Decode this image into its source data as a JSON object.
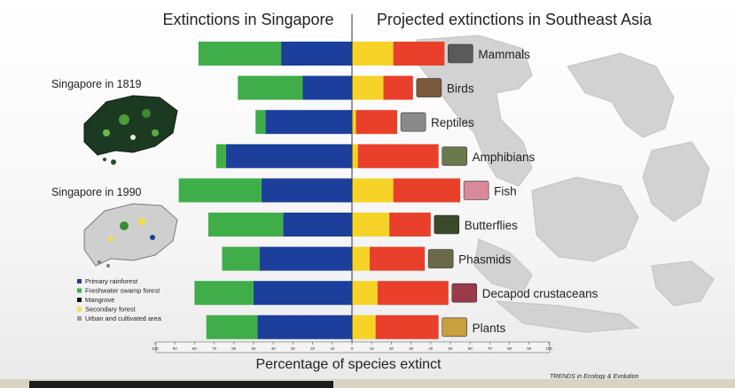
{
  "chart_data": {
    "type": "bar",
    "orientation": "horizontal-diverging",
    "title_left": "Extinctions in Singapore",
    "title_right": "Projected extinctions in Southeast Asia",
    "xlabel": "Percentage of species extinct",
    "credit": "TRENDS in Ecology & Evolution",
    "xlim": [
      -100,
      100
    ],
    "ticks": [
      "100",
      "90",
      "80",
      "70",
      "60",
      "50",
      "40",
      "30",
      "20",
      "10",
      "0",
      "10",
      "20",
      "30",
      "40",
      "50",
      "60",
      "70",
      "80",
      "90",
      "100"
    ],
    "categories": [
      "Mammals",
      "Birds",
      "Reptiles",
      "Amphibians",
      "Fish",
      "Butterflies",
      "Phasmids",
      "Decapod crustaceans",
      "Plants"
    ],
    "singapore_series": [
      {
        "name": "Primary rainforest",
        "color": "#1b3f9b",
        "values": [
          36,
          25,
          44,
          64,
          46,
          35,
          47,
          50,
          48
        ]
      },
      {
        "name": "Freshwater swamp forest",
        "color": "#3fae49",
        "values": [
          42,
          33,
          5,
          5,
          42,
          38,
          19,
          30,
          26
        ]
      },
      {
        "name": "Mangrove",
        "color": "#111111",
        "values": [
          0,
          0,
          0,
          0,
          0,
          0,
          0,
          0,
          0
        ]
      },
      {
        "name": "Secondary forest",
        "color": "#f2e040",
        "values": [
          0,
          0,
          0,
          0,
          0,
          0,
          0,
          0,
          0
        ]
      },
      {
        "name": "Urban and cultivated area",
        "color": "#9c9c9c",
        "values": [
          0,
          0,
          0,
          0,
          0,
          0,
          0,
          0,
          0
        ]
      }
    ],
    "southeast_asia_series": [
      {
        "color": "#f5d327",
        "values": [
          21,
          16,
          2,
          3,
          21,
          19,
          9,
          13,
          12
        ]
      },
      {
        "color": "#e8402a",
        "values": [
          26,
          15,
          21,
          41,
          34,
          21,
          28,
          36,
          32
        ]
      }
    ],
    "legend": {
      "placement": "bottom-left",
      "entries": [
        {
          "label": "Primary rainforest",
          "color": "#1b3f9b"
        },
        {
          "label": "Freshwater swamp forest",
          "color": "#3fae49"
        },
        {
          "label": "Mangrove",
          "color": "#111111"
        },
        {
          "label": "Secondary forest",
          "color": "#f2e040"
        },
        {
          "label": "Urban and cultivated area",
          "color": "#9c9c9c"
        }
      ]
    },
    "map_labels": [
      "Singapore in 1819",
      "Singapore in 1990"
    ],
    "grid": false
  }
}
